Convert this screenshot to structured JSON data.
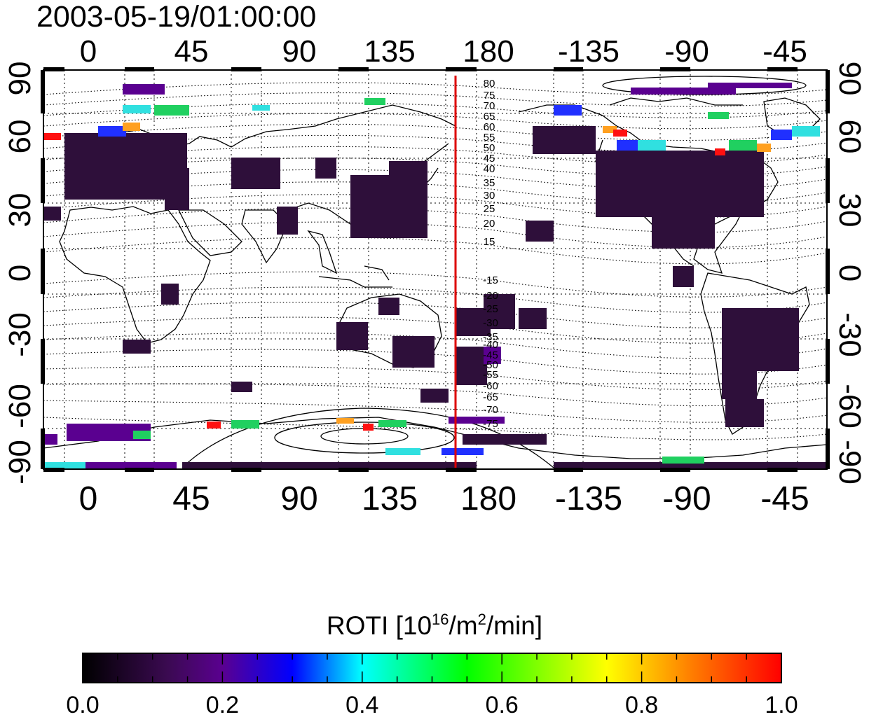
{
  "title": "2003-05-19/01:00:00",
  "map": {
    "lon_ticks_top": [
      "0",
      "45",
      "90",
      "135",
      "180",
      "-135",
      "-90",
      "-45"
    ],
    "lon_ticks_bottom": [
      "0",
      "45",
      "90",
      "135",
      "180",
      "-135",
      "-90",
      "-45"
    ],
    "lat_ticks_left": [
      "90",
      "60",
      "30",
      "0",
      "-30",
      "-60",
      "-90"
    ],
    "lat_ticks_right": [
      "90",
      "60",
      "30",
      "0",
      "-30",
      "-60",
      "-90"
    ],
    "contour_labels_north": [
      "80",
      "75",
      "70",
      "65",
      "60",
      "55",
      "50",
      "45",
      "40",
      "35",
      "30",
      "25",
      "20",
      "15"
    ],
    "contour_labels_south": [
      "-15",
      "-20",
      "-25",
      "-30",
      "-35",
      "-40",
      "-45",
      "-50",
      "-55",
      "-60",
      "-65",
      "-70",
      "-75"
    ],
    "meridian_line_color": "#dd0000"
  },
  "colorbar": {
    "title_main": "ROTI  [10",
    "title_exp1": "16",
    "title_mid": "/m",
    "title_exp2": "2",
    "title_end": "/min]",
    "ticks": [
      "0.0",
      "0.2",
      "0.4",
      "0.6",
      "0.8",
      "1.0"
    ],
    "range": [
      0.0,
      1.0
    ],
    "colormap": [
      "#000000",
      "#3a0a50",
      "#5a0090",
      "#0000ff",
      "#00ffff",
      "#00ff00",
      "#ffff00",
      "#ff7f00",
      "#ff0000"
    ]
  }
}
